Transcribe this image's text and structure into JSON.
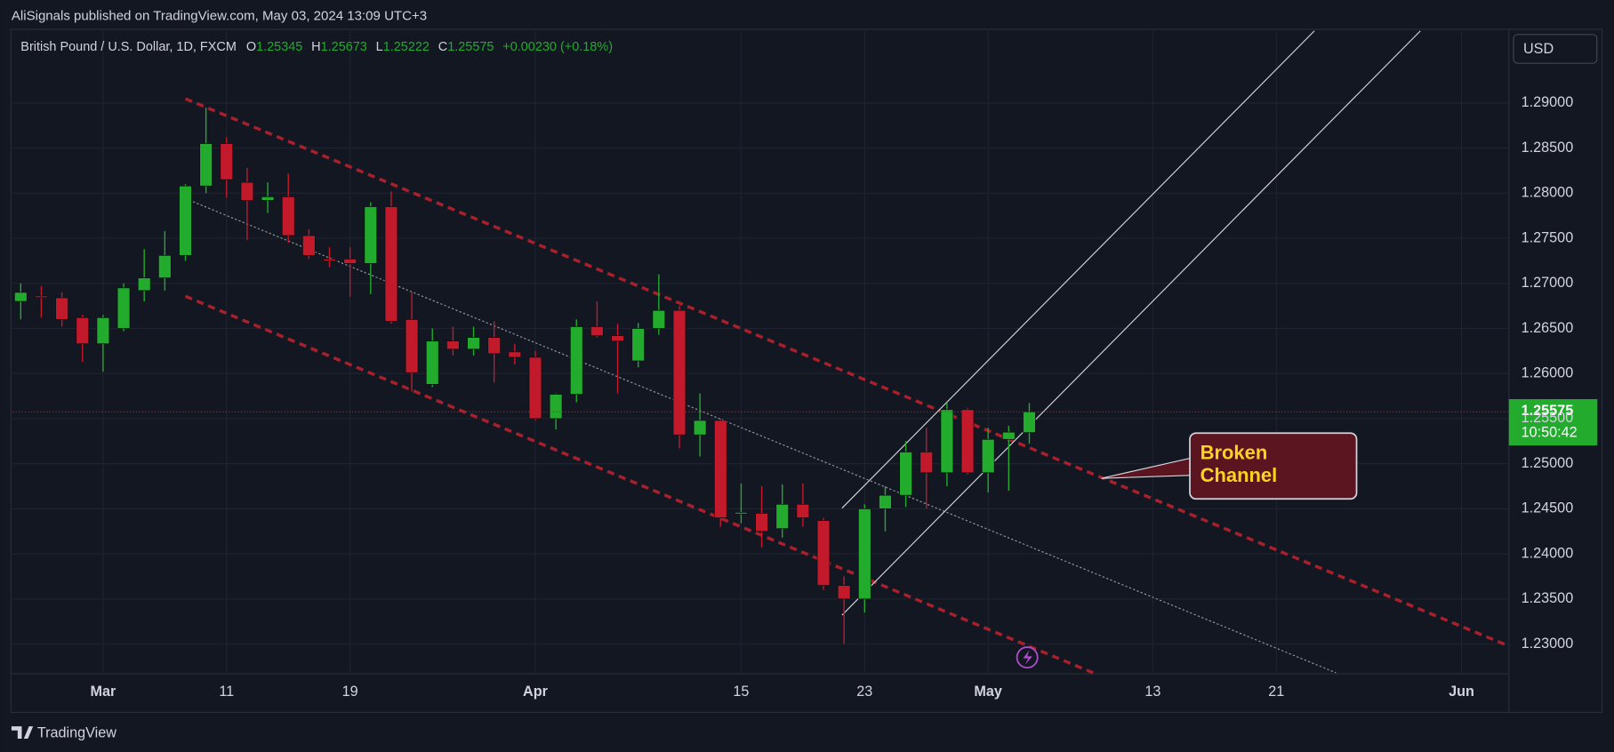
{
  "header": {
    "publisher": "AliSignals published on TradingView.com, May 03, 2024 13:09 UTC+3",
    "brand": "TradingView"
  },
  "chart_data": {
    "type": "candlestick",
    "symbol": "British Pound / U.S. Dollar, 1D, FXCM",
    "ohlc_legend": {
      "o_key": "O",
      "open": "1.25345",
      "h_key": "H",
      "high": "1.25673",
      "l_key": "L",
      "low": "1.25222",
      "c_key": "C",
      "close": "1.25575",
      "change": "+0.00230 (+0.18%)"
    },
    "currency": "USD",
    "last_price_label": "1.25575",
    "countdown": "10:50:42",
    "annotation": "Broken Channel",
    "up_color": "#22ab2c",
    "down_color": "#c21a2b",
    "x": [
      -4,
      -3,
      -2,
      -1,
      0,
      1,
      2,
      3,
      4,
      5,
      6,
      7,
      8,
      9,
      10,
      11,
      12,
      13,
      14,
      15,
      16,
      17,
      18,
      19,
      20,
      21,
      22,
      23,
      24,
      25,
      26,
      27,
      28,
      29,
      30,
      31,
      32,
      33,
      34,
      35,
      36,
      37,
      38,
      39,
      40,
      41,
      42,
      43,
      44,
      45
    ],
    "open": [
      1.268,
      1.2686,
      1.2684,
      1.2662,
      1.2633,
      1.265,
      1.2692,
      1.2706,
      1.2731,
      1.2808,
      1.2855,
      1.2812,
      1.2792,
      1.2796,
      1.2753,
      1.2727,
      1.2727,
      1.2722,
      1.2785,
      1.266,
      1.2588,
      1.2636,
      1.2627,
      1.264,
      1.2624,
      1.2618,
      1.255,
      1.2577,
      1.2652,
      1.2642,
      1.2614,
      1.265,
      1.267,
      1.2532,
      1.2548,
      1.2445,
      1.2445,
      1.2428,
      1.2455,
      1.2437,
      1.2365,
      1.235,
      1.245,
      1.2465,
      1.2513,
      1.249,
      1.256,
      1.249,
      1.2527,
      1.25345
    ],
    "high": [
      1.27,
      1.2697,
      1.269,
      1.2665,
      1.2665,
      1.27,
      1.2738,
      1.2758,
      1.281,
      1.2895,
      1.2862,
      1.2828,
      1.2812,
      1.2822,
      1.276,
      1.274,
      1.274,
      1.279,
      1.2802,
      1.269,
      1.265,
      1.2652,
      1.2652,
      1.2658,
      1.2633,
      1.2625,
      1.2578,
      1.266,
      1.268,
      1.2655,
      1.2656,
      1.271,
      1.2675,
      1.2578,
      1.255,
      1.2478,
      1.2475,
      1.2477,
      1.2478,
      1.244,
      1.2375,
      1.2455,
      1.2475,
      1.2525,
      1.254,
      1.2568,
      1.2562,
      1.254,
      1.2542,
      1.25673
    ],
    "low": [
      1.266,
      1.2662,
      1.2652,
      1.2613,
      1.2602,
      1.2647,
      1.268,
      1.2692,
      1.2725,
      1.28,
      1.2795,
      1.2748,
      1.2778,
      1.2745,
      1.2727,
      1.2718,
      1.2685,
      1.2688,
      1.2655,
      1.258,
      1.2585,
      1.262,
      1.262,
      1.259,
      1.261,
      1.2548,
      1.2538,
      1.2568,
      1.264,
      1.2578,
      1.2607,
      1.2643,
      1.2517,
      1.2508,
      1.243,
      1.2434,
      1.2407,
      1.2418,
      1.243,
      1.236,
      1.23,
      1.2335,
      1.2425,
      1.2452,
      1.245,
      1.2475,
      1.2488,
      1.2468,
      1.247,
      1.25222
    ],
    "close": [
      1.269,
      1.2685,
      1.266,
      1.2633,
      1.2662,
      1.2695,
      1.2706,
      1.2731,
      1.2808,
      1.2855,
      1.2815,
      1.2792,
      1.2796,
      1.2753,
      1.2731,
      1.2725,
      1.2722,
      1.2785,
      1.2658,
      1.2601,
      1.2636,
      1.2627,
      1.264,
      1.2622,
      1.2618,
      1.255,
      1.2577,
      1.2652,
      1.2642,
      1.2636,
      1.265,
      1.267,
      1.2532,
      1.2548,
      1.244,
      1.2446,
      1.2425,
      1.2455,
      1.244,
      1.2365,
      1.235,
      1.245,
      1.2465,
      1.2513,
      1.249,
      1.256,
      1.249,
      1.2527,
      1.2535,
      1.25575
    ],
    "xlim": [
      -4.4,
      68.3
    ],
    "xticks": [
      {
        "value": 0,
        "label": "Mar"
      },
      {
        "value": 6,
        "label": "11"
      },
      {
        "value": 12,
        "label": "19"
      },
      {
        "value": 21,
        "label": "Apr"
      },
      {
        "value": 31,
        "label": "15"
      },
      {
        "value": 37,
        "label": "23"
      },
      {
        "value": 43,
        "label": "May"
      },
      {
        "value": 51,
        "label": "13"
      },
      {
        "value": 57,
        "label": "21"
      },
      {
        "value": 66,
        "label": "Jun"
      }
    ],
    "ylim": [
      1.2267,
      1.298
    ],
    "yticks": [
      {
        "value": 1.23,
        "label": "1.23000"
      },
      {
        "value": 1.235,
        "label": "1.23500"
      },
      {
        "value": 1.24,
        "label": "1.24000"
      },
      {
        "value": 1.245,
        "label": "1.24500"
      },
      {
        "value": 1.25,
        "label": "1.25000"
      },
      {
        "value": 1.255,
        "label": "1.25500"
      },
      {
        "value": 1.26,
        "label": "1.26000"
      },
      {
        "value": 1.265,
        "label": "1.26500"
      },
      {
        "value": 1.27,
        "label": "1.27000"
      },
      {
        "value": 1.275,
        "label": "1.27500"
      },
      {
        "value": 1.28,
        "label": "1.28000"
      },
      {
        "value": 1.285,
        "label": "1.28500"
      },
      {
        "value": 1.29,
        "label": "1.29000"
      }
    ],
    "grid": true
  }
}
